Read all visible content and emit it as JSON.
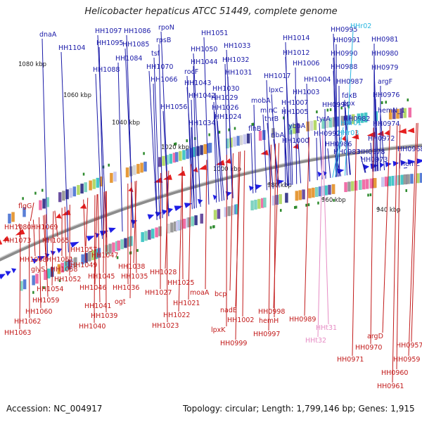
{
  "title": "Helicobacter hepaticus ATCC 51449, complete genome",
  "footer": {
    "accession": "Accession: NC_004917",
    "stats": "Topology: circular; Length: 1,799,146 bp; Genes: 1,915"
  },
  "colors": {
    "plus_strand": "#1f1fe6",
    "minus_strand": "#e61f1f",
    "plus_label": "#1a1aa8",
    "minus_label": "#c21a1a",
    "rna_plus": "#29b6e0",
    "rna_minus": "#e68cc4",
    "backbone": "#8c8c8c",
    "marker": "#2e8b2e"
  },
  "ruler": [
    "1080 kbp",
    "1060 kbp",
    "1040 kbp",
    "1020 kbp",
    "1000 kbp",
    "980 kbp",
    "960 kbp",
    "940 kbp"
  ],
  "plus_labels": [
    "dnaA",
    "HH1104",
    "HH1097",
    "HH1095",
    "HH1086",
    "HH1085",
    "HH1084",
    "HH1088",
    "rpoN",
    "rpsB",
    "tsf",
    "HH1070",
    "HH1066",
    "HH1051",
    "HH1050",
    "HH1044",
    "rocF",
    "HH1043",
    "HH1042",
    "HH1056",
    "HH1033",
    "HH1032",
    "HH1031",
    "HH1030",
    "HH1029",
    "HH1026",
    "HH1024",
    "HH1034",
    "HH1017",
    "lpxC",
    "mobA",
    "minC",
    "thrB",
    "flhB",
    "HH1014",
    "HH1012",
    "HH1006",
    "HH1004",
    "HH1003",
    "HH1007",
    "HH1005",
    "ribA",
    "ybbA",
    "HH1000",
    "HH0995",
    "HH0991",
    "HH0990",
    "HH0988",
    "HH0987",
    "fdxB",
    "ppx",
    "HH0994",
    "tyrA",
    "HH0982",
    "HH0992",
    "HH0986",
    "HH0983",
    "HH0981",
    "HH0980",
    "HH0979",
    "argF",
    "HH0976",
    "hemN_1",
    "HH0974",
    "HH0972",
    "HH0978",
    "HH0968",
    "HH0973",
    "hemL"
  ],
  "rna_plus_labels": [
    "HHr02",
    "HHr03",
    "HHr01"
  ],
  "minus_labels": [
    "flgG",
    "HH1080",
    "HH1069",
    "HH1073",
    "HH1065",
    "HH1068",
    "HH1061",
    "HH1057",
    "glyS",
    "HH1058",
    "HH1052",
    "HH1054",
    "HH1059",
    "HH1060",
    "HH1062",
    "HH1063",
    "HH1049",
    "HH1047",
    "HH1045",
    "HH1046",
    "HH1041",
    "HH1039",
    "HH1040",
    "HH1038",
    "HH1035",
    "HH1036",
    "ogt",
    "HH1028",
    "HH1025",
    "HH1027",
    "HH1021",
    "HH1022",
    "HH1023",
    "moaA",
    "bcp",
    "nadE",
    "lpxK",
    "HH1002",
    "HH0999",
    "HH0998",
    "hemH",
    "HH0997",
    "HH0989",
    "argD",
    "HH0970",
    "HH0971",
    "HH0957",
    "HH0959",
    "HH0960",
    "HH0961"
  ],
  "rna_minus_labels": [
    "HHt31",
    "HHt32"
  ]
}
